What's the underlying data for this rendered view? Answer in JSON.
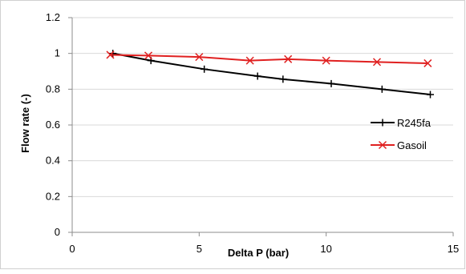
{
  "chart_data": {
    "type": "line",
    "title": "",
    "xlabel": "Delta P (bar)",
    "ylabel": "Flow rate (-)",
    "xlim": [
      0,
      15
    ],
    "ylim": [
      0,
      1.2
    ],
    "x_ticks": [
      0,
      5,
      10,
      15
    ],
    "y_ticks": [
      0,
      0.2,
      0.4,
      0.6,
      0.8,
      1,
      1.2
    ],
    "x_tick_labels": [
      "0",
      "5",
      "10",
      "15"
    ],
    "y_tick_labels": [
      "0",
      "0.2",
      "0.4",
      "0.6",
      "0.8",
      "1",
      "1.2"
    ],
    "grid": "horizontal",
    "legend_position": "right",
    "series": [
      {
        "name": "R245fa",
        "color": "#000000",
        "marker": "plus",
        "x": [
          1.6,
          3.1,
          5.2,
          7.3,
          8.3,
          10.2,
          12.2,
          14.1
        ],
        "y": [
          1.0,
          0.96,
          0.912,
          0.873,
          0.856,
          0.831,
          0.8,
          0.77
        ]
      },
      {
        "name": "Gasoil",
        "color": "#e02020",
        "marker": "x",
        "x": [
          1.5,
          3.0,
          5.0,
          7.0,
          8.5,
          10.0,
          12.0,
          14.0
        ],
        "y": [
          0.992,
          0.988,
          0.98,
          0.96,
          0.968,
          0.96,
          0.952,
          0.945
        ]
      }
    ]
  }
}
